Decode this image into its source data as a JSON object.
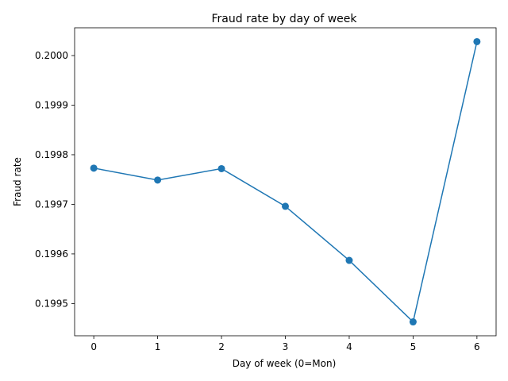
{
  "chart_data": {
    "type": "line",
    "title": "Fraud rate by day of week",
    "xlabel": "Day of week (0=Mon)",
    "ylabel": "Fraud rate",
    "x": [
      0,
      1,
      2,
      3,
      4,
      5,
      6
    ],
    "series": [
      {
        "values": [
          0.199773,
          0.199749,
          0.199772,
          0.199696,
          0.199587,
          0.199463,
          0.200028
        ],
        "color": "#1f77b4",
        "marker": "circle"
      }
    ],
    "xticks": [
      "0",
      "1",
      "2",
      "3",
      "4",
      "5",
      "6"
    ],
    "yticks": [
      "0.1995",
      "0.1996",
      "0.1997",
      "0.1998",
      "0.1999",
      "0.2000"
    ],
    "ytick_values": [
      0.1995,
      0.1996,
      0.1997,
      0.1998,
      0.1999,
      0.2
    ],
    "xlim": [
      -0.3,
      6.3
    ],
    "ylim": [
      0.199435,
      0.200056
    ],
    "grid": false,
    "legend": false
  }
}
